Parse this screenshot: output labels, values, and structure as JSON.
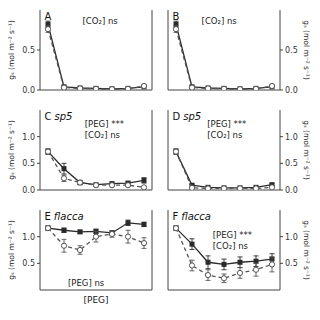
{
  "chart_data": [
    {
      "type": "line",
      "title": "A",
      "annotations": [
        "[CO₂] ns"
      ],
      "ylabel": "gₛ (mol m⁻² s⁻¹)",
      "x": [
        0,
        1,
        2,
        3,
        4,
        5,
        6
      ],
      "xlim": [
        -0.5,
        6.5
      ],
      "xticks": [],
      "ylim": [
        0.0,
        1.0
      ],
      "yticks": [
        {
          "value": 0.0,
          "label": "0.0"
        },
        0.5
      ],
      "tick_labels": "y",
      "series": [
        {
          "color": "#2a2a2a",
          "marker": "square",
          "line_style": "solid",
          "values": [
            0.82,
            0.04,
            0.025,
            0.02,
            0.015,
            0.02,
            0.04
          ],
          "errors": [
            0.04,
            0.01,
            0.005,
            0.005,
            0.005,
            0.005,
            0.01
          ]
        },
        {
          "color": "#555555",
          "marker": "circle",
          "line_style": "dashed",
          "values": [
            0.76,
            0.03,
            0.02,
            0.015,
            0.01,
            0.015,
            0.05
          ],
          "errors": [
            0.04,
            0.01,
            0.005,
            0.005,
            0.005,
            0.005,
            0.01
          ]
        }
      ]
    },
    {
      "type": "line",
      "title": "B",
      "annotations": [
        "[CO₂] ns"
      ],
      "y2label": "gₛ (mol m⁻² s⁻¹)",
      "x": [
        0,
        1,
        2,
        3,
        4,
        5,
        6
      ],
      "xlim": [
        -0.5,
        6.5
      ],
      "xticks": [],
      "y2lim": [
        0.0,
        1.0
      ],
      "y2ticks": [
        {
          "value": 0.0,
          "label": "0.0"
        },
        0.5
      ],
      "tick_labels": "y",
      "series": [
        {
          "color": "#2a2a2a",
          "marker": "square",
          "line_style": "solid",
          "axis": "y2",
          "values": [
            0.82,
            0.04,
            0.025,
            0.02,
            0.015,
            0.02,
            0.04
          ],
          "errors": [
            0.04,
            0.01,
            0.005,
            0.005,
            0.005,
            0.005,
            0.01
          ]
        },
        {
          "color": "#555555",
          "marker": "circle",
          "line_style": "dashed",
          "axis": "y2",
          "values": [
            0.76,
            0.03,
            0.02,
            0.015,
            0.01,
            0.015,
            0.05
          ],
          "errors": [
            0.04,
            0.01,
            0.005,
            0.005,
            0.005,
            0.005,
            0.01
          ]
        }
      ]
    },
    {
      "type": "line",
      "title": "C",
      "subtitle": "sp5",
      "annotations": [
        "[PEG] ***",
        "[CO₂] ns"
      ],
      "ylabel": "gₛ (mol m⁻² s⁻¹)",
      "x": [
        0,
        1,
        2,
        3,
        4,
        5,
        6
      ],
      "xlim": [
        -0.5,
        6.5
      ],
      "xticks": [],
      "ylim": [
        0.0,
        1.5
      ],
      "yticks": [
        {
          "value": 0.0,
          "label": "0.0"
        },
        0.5,
        {
          "value": 1.0,
          "label": "1.0"
        }
      ],
      "tick_labels": "y",
      "series": [
        {
          "color": "#2a2a2a",
          "marker": "square",
          "line_style": "solid",
          "values": [
            0.72,
            0.4,
            0.14,
            0.1,
            0.12,
            0.13,
            0.18
          ],
          "errors": [
            0.05,
            0.1,
            0.04,
            0.02,
            0.02,
            0.02,
            0.05
          ]
        },
        {
          "color": "#555555",
          "marker": "circle",
          "line_style": "dashed",
          "values": [
            0.72,
            0.22,
            0.14,
            0.09,
            0.09,
            0.09,
            0.05
          ],
          "errors": [
            0.05,
            0.06,
            0.04,
            0.02,
            0.02,
            0.02,
            0.02
          ]
        }
      ]
    },
    {
      "type": "line",
      "title": "D",
      "subtitle": "sp5",
      "annotations": [
        "[PEG] ***",
        "[CO₂] ns"
      ],
      "y2label": "gₛ (mol m⁻² s⁻¹)",
      "x": [
        0,
        1,
        2,
        3,
        4,
        5,
        6
      ],
      "xlim": [
        -0.5,
        6.5
      ],
      "xticks": [],
      "y2lim": [
        0.0,
        1.5
      ],
      "y2ticks": [
        {
          "value": 0.0,
          "label": "0.0"
        },
        0.5,
        {
          "value": 1.0,
          "label": "1.0"
        }
      ],
      "tick_labels": "y",
      "series": [
        {
          "color": "#2a2a2a",
          "marker": "square",
          "line_style": "solid",
          "axis": "y2",
          "values": [
            0.72,
            0.09,
            0.05,
            0.04,
            0.04,
            0.05,
            0.1
          ],
          "errors": [
            0.05,
            0.02,
            0.01,
            0.01,
            0.01,
            0.01,
            0.02
          ]
        },
        {
          "color": "#555555",
          "marker": "circle",
          "line_style": "dashed",
          "axis": "y2",
          "values": [
            0.72,
            0.04,
            0.03,
            0.03,
            0.03,
            0.03,
            0.05
          ],
          "errors": [
            0.05,
            0.01,
            0.01,
            0.01,
            0.01,
            0.01,
            0.01
          ]
        }
      ]
    },
    {
      "type": "line",
      "title": "E",
      "subtitle": "flacca",
      "annotations": [
        "[PEG] ns"
      ],
      "ylabel": "gₛ (mol m⁻² s⁻¹)",
      "xlabel": "[PEG]",
      "x": [
        0,
        1,
        2,
        3,
        4,
        5,
        6
      ],
      "xlim": [
        -0.5,
        6.5
      ],
      "xticks": [],
      "ylim": [
        0.0,
        1.5
      ],
      "yticks": [
        0.5,
        {
          "value": 1.0,
          "label": "1.0"
        }
      ],
      "tick_labels": "y",
      "series": [
        {
          "color": "#2a2a2a",
          "marker": "square",
          "line_style": "solid",
          "values": [
            1.16,
            1.12,
            1.09,
            1.1,
            1.07,
            1.26,
            1.23
          ],
          "errors": [
            0.04,
            0.04,
            0.03,
            0.04,
            0.04,
            0.05,
            0.04
          ]
        },
        {
          "color": "#555555",
          "marker": "circle",
          "line_style": "dashed",
          "values": [
            1.16,
            0.83,
            0.75,
            1.0,
            1.05,
            1.0,
            0.88
          ],
          "errors": [
            0.04,
            0.12,
            0.08,
            0.1,
            0.06,
            0.12,
            0.1
          ]
        }
      ]
    },
    {
      "type": "line",
      "title": "F",
      "subtitle": "flacca",
      "annotations": [
        "[PEG] ***",
        "[CO₂] ns"
      ],
      "y2label": "gₛ (mol m⁻² s⁻¹)",
      "x": [
        0,
        1,
        2,
        3,
        4,
        5,
        6
      ],
      "xlim": [
        -0.5,
        6.5
      ],
      "xticks": [],
      "y2lim": [
        0.0,
        1.5
      ],
      "y2ticks": [
        0.5,
        {
          "value": 1.0,
          "label": "1.0"
        }
      ],
      "tick_labels": "y",
      "series": [
        {
          "color": "#2a2a2a",
          "marker": "square",
          "line_style": "solid",
          "axis": "y2",
          "values": [
            1.16,
            0.86,
            0.52,
            0.48,
            0.52,
            0.54,
            0.58
          ],
          "errors": [
            0.04,
            0.1,
            0.12,
            0.1,
            0.1,
            0.1,
            0.1
          ]
        },
        {
          "color": "#555555",
          "marker": "circle",
          "line_style": "dashed",
          "axis": "y2",
          "values": [
            1.16,
            0.46,
            0.28,
            0.22,
            0.32,
            0.38,
            0.48
          ],
          "errors": [
            0.04,
            0.1,
            0.1,
            0.08,
            0.1,
            0.12,
            0.14
          ]
        }
      ]
    }
  ]
}
